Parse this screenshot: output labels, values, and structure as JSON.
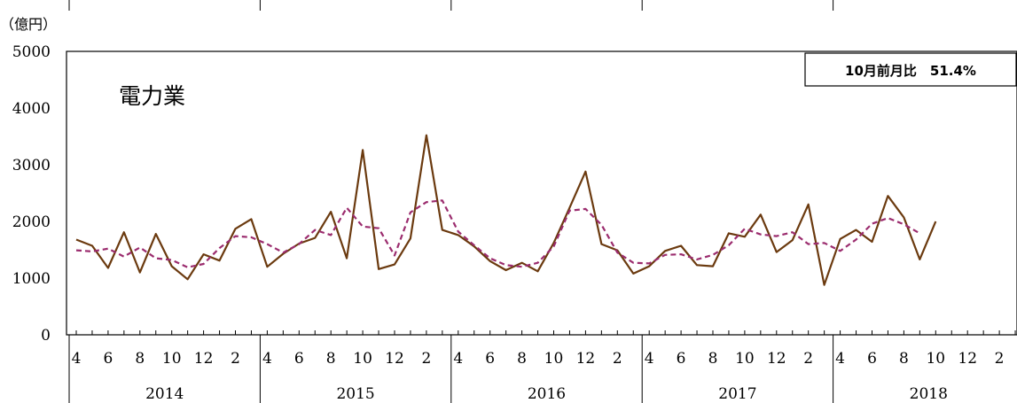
{
  "chart_data": {
    "type": "line",
    "title": "電力業",
    "unit_label": "（億円）",
    "annotation": "10月前月比　51.4%",
    "ylim": [
      0,
      5000
    ],
    "y_ticks": [
      0,
      1000,
      2000,
      3000,
      4000,
      5000
    ],
    "month_labels": [
      "4",
      "6",
      "8",
      "10",
      "12",
      "2"
    ],
    "years": [
      "2014",
      "2015",
      "2016",
      "2017",
      "2018"
    ],
    "x_start": "2014-04",
    "legend": "none",
    "grid": false,
    "series": [
      {
        "color": "#6b3a0f",
        "style": "solid",
        "values": [
          1680,
          1570,
          1180,
          1810,
          1100,
          1780,
          1210,
          980,
          1420,
          1310,
          1870,
          2040,
          1200,
          1430,
          1610,
          1710,
          2170,
          1350,
          3260,
          1160,
          1240,
          1700,
          3520,
          1850,
          1760,
          1560,
          1300,
          1140,
          1270,
          1120,
          1620,
          2240,
          2880,
          1600,
          1490,
          1080,
          1210,
          1480,
          1570,
          1230,
          1210,
          1790,
          1730,
          2120,
          1460,
          1670,
          2300,
          880,
          1690,
          1850,
          1640,
          2450,
          2070,
          1330,
          2000
        ]
      },
      {
        "color": "#9b2c6e",
        "style": "dashed",
        "values": [
          1490,
          1470,
          1520,
          1380,
          1540,
          1350,
          1320,
          1190,
          1250,
          1530,
          1740,
          1720,
          1600,
          1450,
          1600,
          1850,
          1760,
          2240,
          1910,
          1880,
          1400,
          2160,
          2340,
          2370,
          1820,
          1580,
          1350,
          1230,
          1200,
          1270,
          1560,
          2190,
          2220,
          1940,
          1450,
          1270,
          1260,
          1410,
          1420,
          1330,
          1410,
          1580,
          1870,
          1770,
          1740,
          1810,
          1600,
          1620,
          1480,
          1680,
          1960,
          2060,
          1950,
          1790
        ]
      }
    ]
  }
}
